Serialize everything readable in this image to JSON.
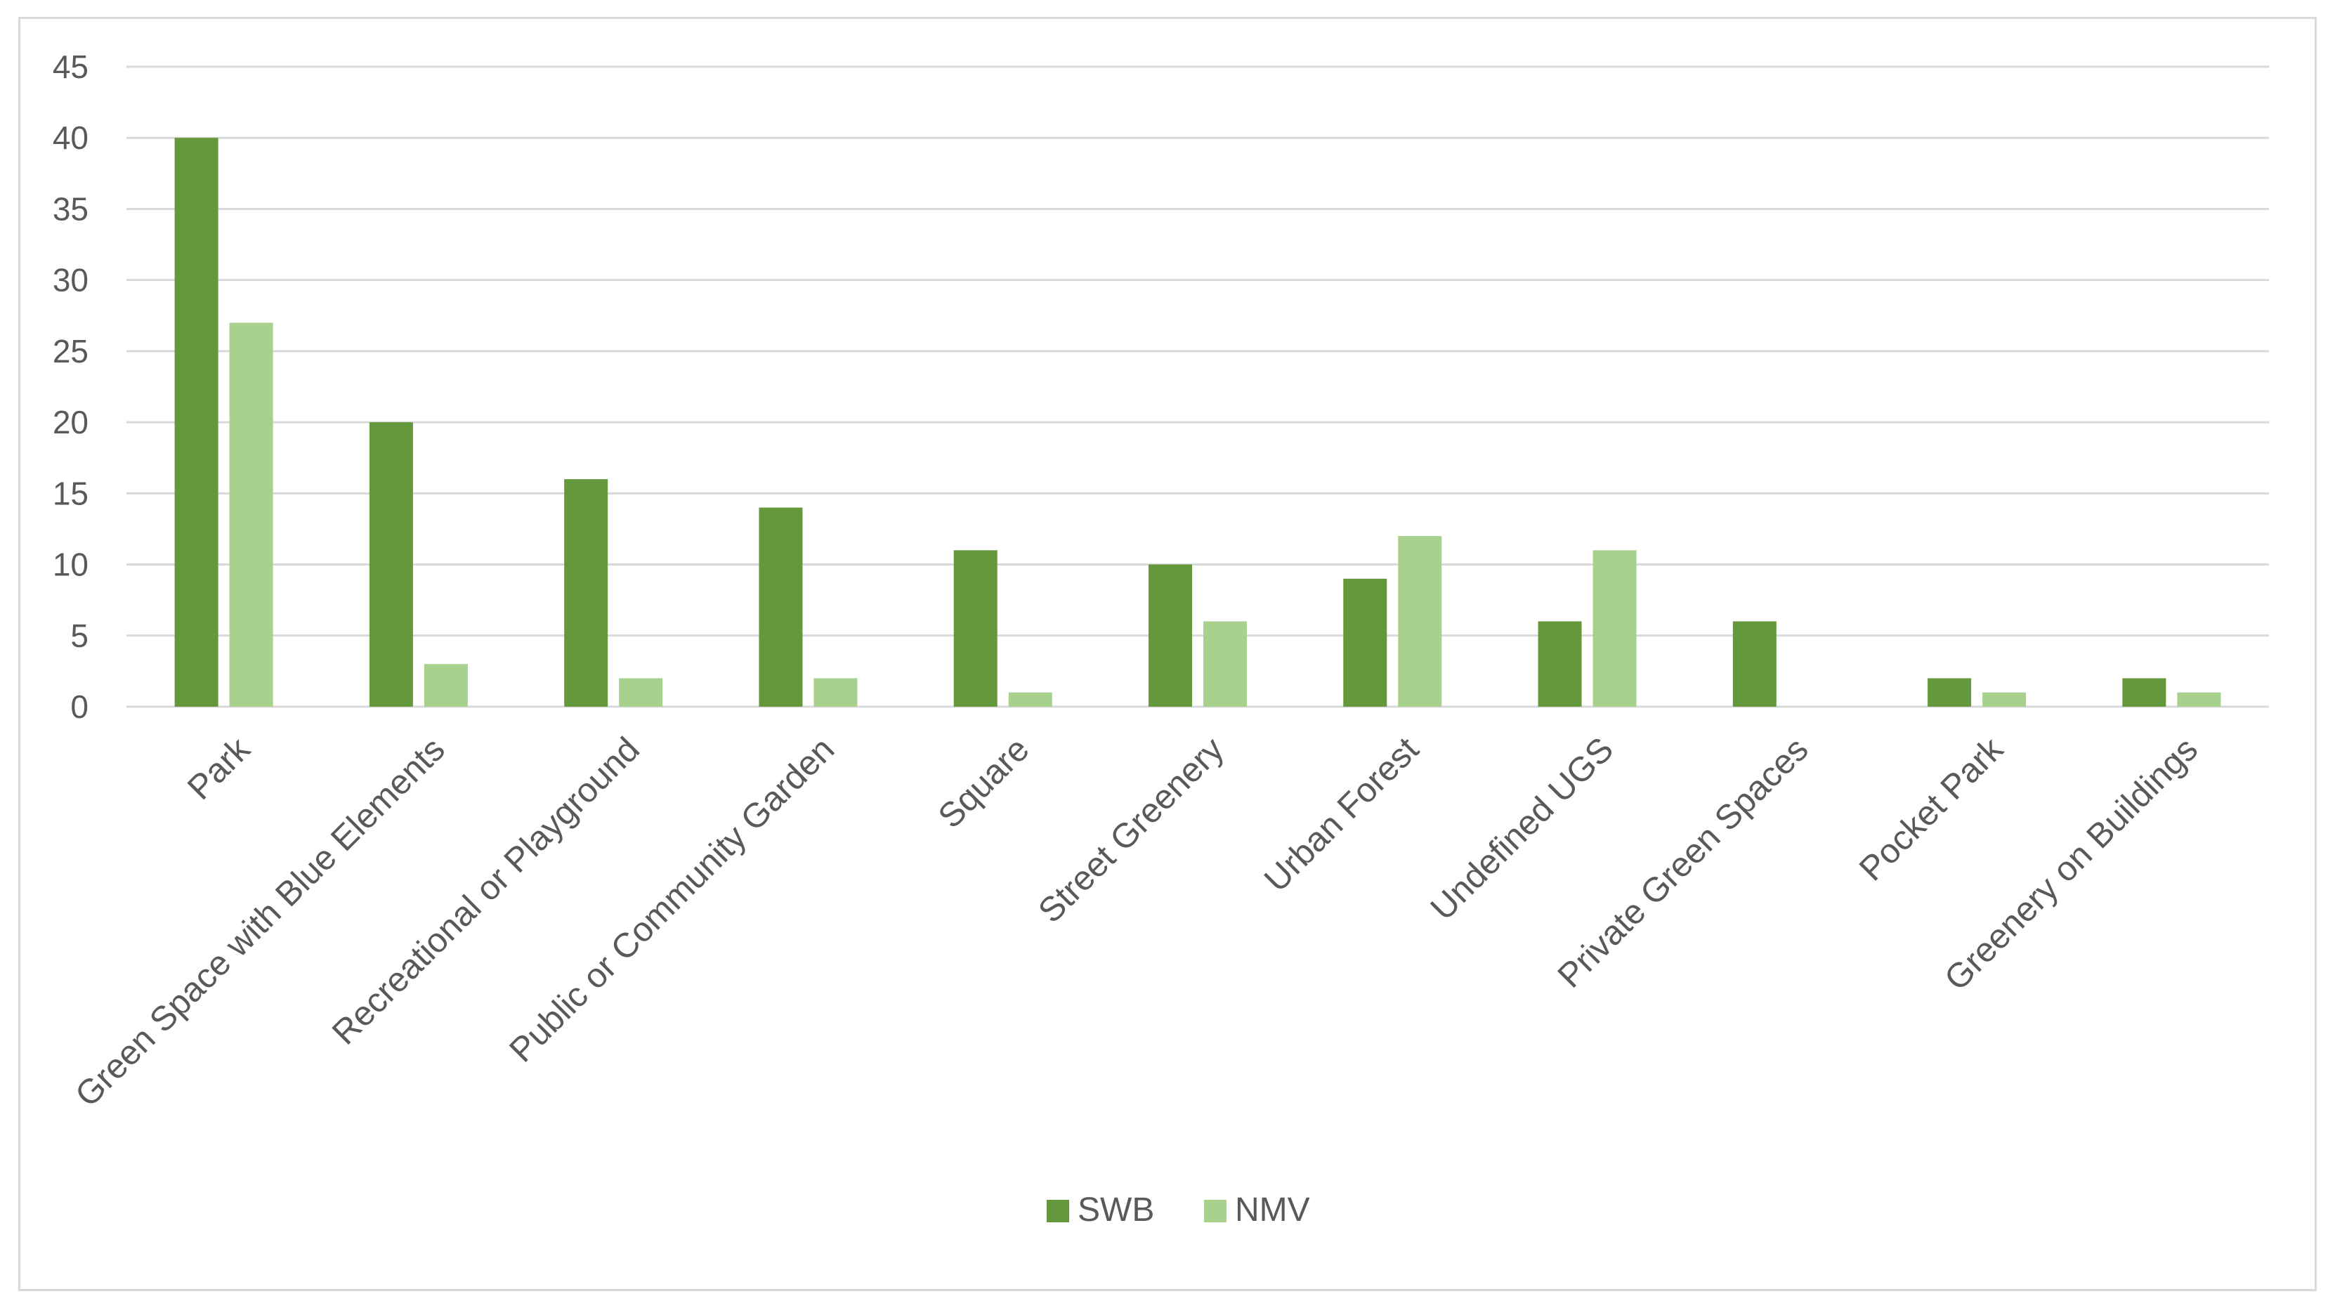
{
  "chart_data": {
    "type": "bar",
    "categories": [
      "Park",
      "Green Space with Blue Elements",
      "Recreational or Playground",
      "Public or Community Garden",
      "Square",
      "Street Greenery",
      "Urban Forest",
      "Undefined UGS",
      "Private Green Spaces",
      "Pocket Park",
      "Greenery on Buildings"
    ],
    "series": [
      {
        "name": "SWB",
        "color": "#63983d",
        "values": [
          40,
          20,
          16,
          14,
          11,
          10,
          9,
          6,
          6,
          2,
          2
        ]
      },
      {
        "name": "NMV",
        "color": "#a9d18e",
        "values": [
          27,
          3,
          2,
          2,
          1,
          6,
          12,
          11,
          0,
          1,
          1
        ]
      }
    ],
    "ylim": [
      0,
      45
    ],
    "yticks": [
      0,
      5,
      10,
      15,
      20,
      25,
      30,
      35,
      40,
      45
    ],
    "grid": true,
    "legend_position": "bottom",
    "title": "",
    "xlabel": "",
    "ylabel": ""
  }
}
